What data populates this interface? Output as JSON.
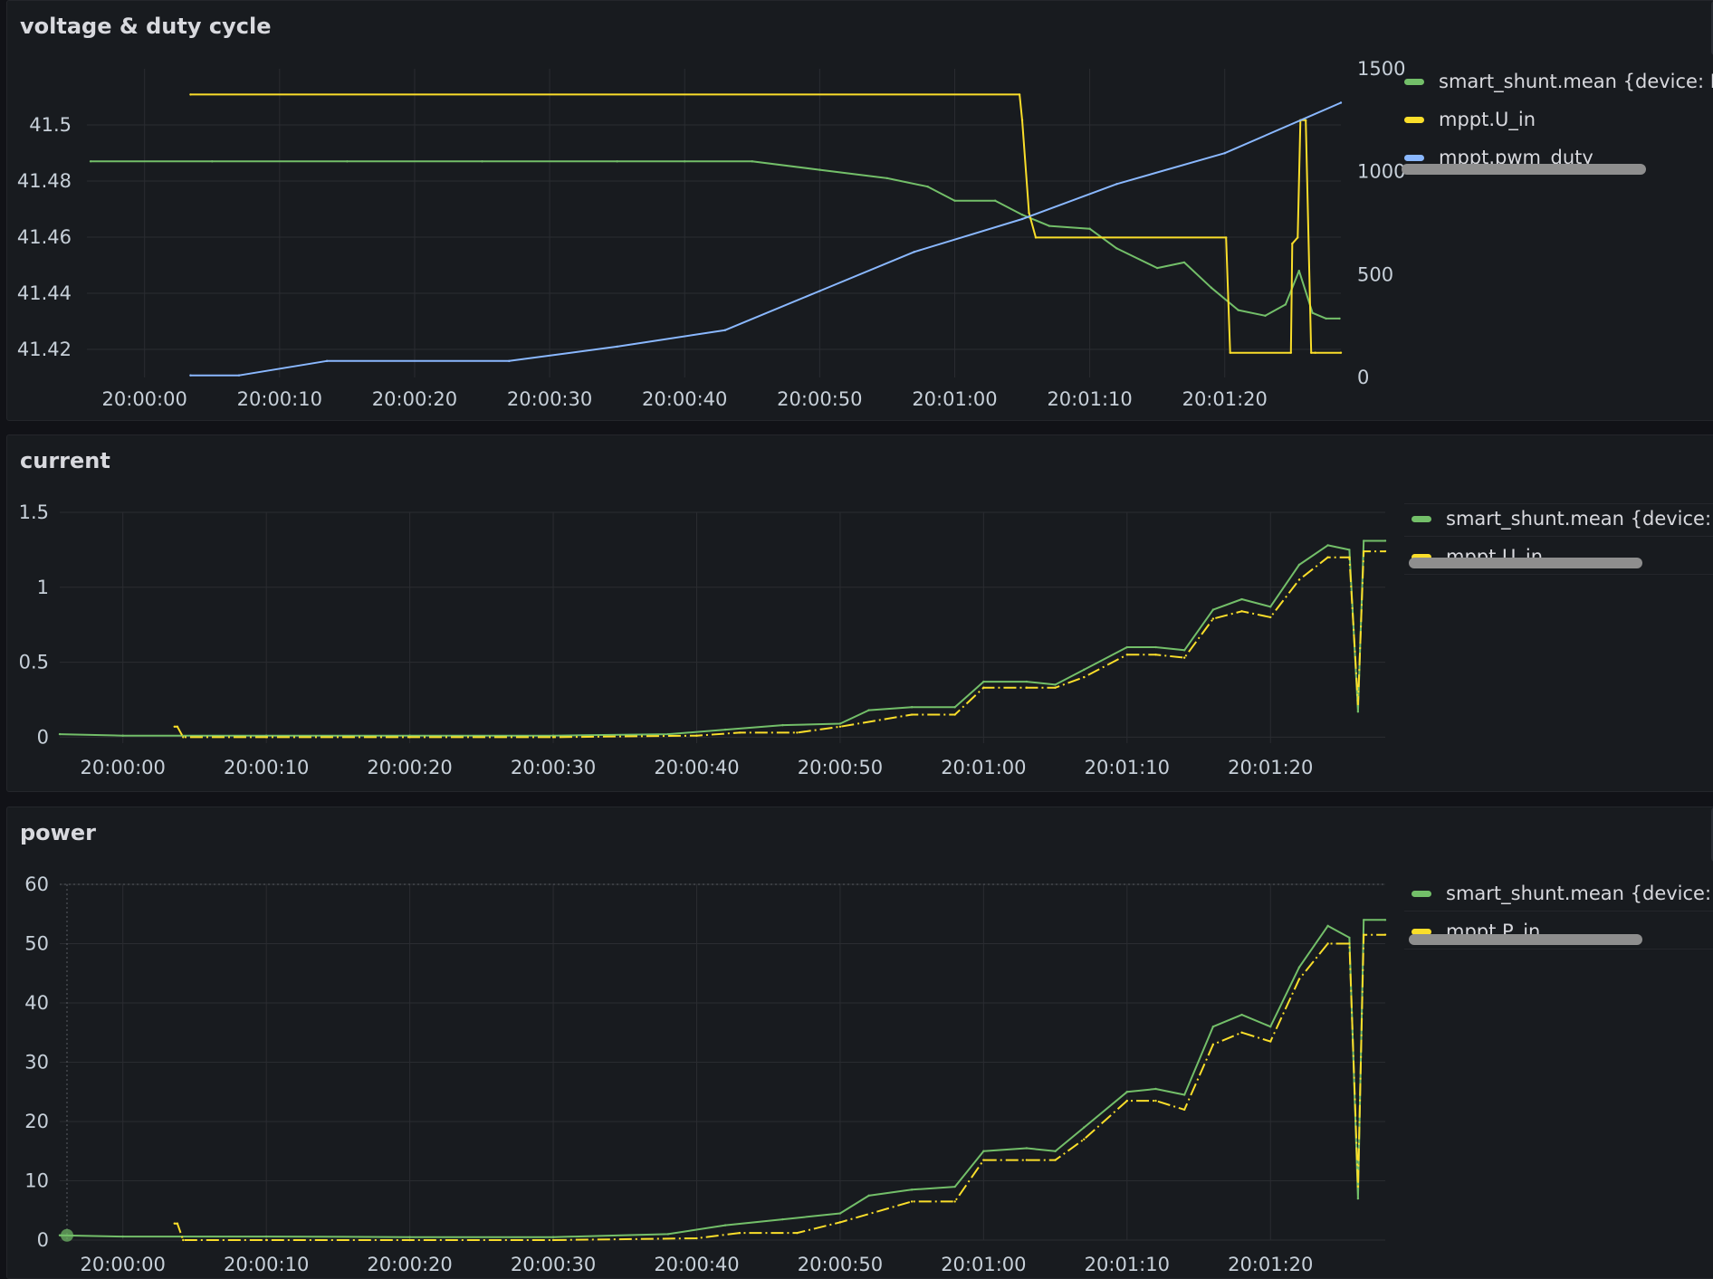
{
  "colors": {
    "green": "#73bf69",
    "yellow": "#fade2a",
    "blue": "#8ab8ff",
    "grid": "#2a2c31"
  },
  "panels": [
    {
      "title": "voltage & duty cycle",
      "legend": [
        {
          "label": "smart_shunt.mean {device: E",
          "color": "#73bf69"
        },
        {
          "label": "mppt.U_in",
          "color": "#fade2a"
        },
        {
          "label": "mppt.pwm_duty",
          "color": "#8ab8ff"
        }
      ],
      "chart_data": {
        "type": "line",
        "x_ticks": [
          "20:00:00",
          "20:00:10",
          "20:00:20",
          "20:00:30",
          "20:00:40",
          "20:00:50",
          "20:01:00",
          "20:01:10",
          "20:01:20"
        ],
        "x_range": [
          -3.6,
          88.6
        ],
        "y_left_ticks": [
          "41.42",
          "41.44",
          "41.46",
          "41.48",
          "41.5"
        ],
        "y_left_range": [
          41.41,
          41.52
        ],
        "y_right_ticks": [
          "0",
          "500",
          "1000",
          "1500"
        ],
        "y_right_range": [
          0,
          1500
        ],
        "series": [
          {
            "name": "smart_shunt.mean {device: E",
            "axis": "left",
            "color": "#73bf69",
            "x": [
              -4,
              5,
              15,
              25,
              35,
              40,
              45,
              50,
              55,
              58,
              60,
              63,
              65,
              67,
              70,
              72,
              75,
              77,
              79,
              81,
              83,
              84.5,
              85.5,
              86.5,
              87.5,
              88.5
            ],
            "y": [
              41.487,
              41.487,
              41.487,
              41.487,
              41.487,
              41.487,
              41.487,
              41.484,
              41.481,
              41.478,
              41.473,
              41.473,
              41.468,
              41.464,
              41.463,
              41.456,
              41.449,
              41.451,
              41.442,
              41.434,
              41.432,
              41.436,
              41.448,
              41.433,
              41.431,
              41.431
            ]
          },
          {
            "name": "mppt.U_in",
            "axis": "right",
            "color": "#fade2a",
            "x": [
              3.4,
              64.8,
              65,
              65.5,
              66,
              80.1,
              80.4,
              84.9,
              85,
              85.4,
              85.6,
              86,
              86.4,
              86.7,
              88.6
            ],
            "y": [
              1375,
              1375,
              1250,
              800,
              680,
              680,
              120,
              120,
              650,
              680,
              1250,
              1250,
              120,
              120,
              120
            ]
          },
          {
            "name": "mppt.pwm_duty",
            "axis": "right",
            "color": "#8ab8ff",
            "x": [
              3.4,
              7,
              13.5,
              27,
              35,
              43,
              50,
              57,
              65,
              72,
              80,
              88.6
            ],
            "y": [
              10,
              10,
              80,
              80,
              150,
              230,
              420,
              610,
              770,
              940,
              1090,
              1335
            ]
          }
        ]
      }
    },
    {
      "title": "current",
      "legend": [
        {
          "label": "smart_shunt.mean {device: E",
          "color": "#73bf69"
        },
        {
          "label": "mppt.U_in",
          "color": "#fade2a"
        }
      ],
      "chart_data": {
        "type": "line",
        "x_ticks": [
          "20:00:00",
          "20:00:10",
          "20:00:20",
          "20:00:30",
          "20:00:40",
          "20:00:50",
          "20:01:00",
          "20:01:10",
          "20:01:20"
        ],
        "x_range": [
          -4.4,
          88
        ],
        "y_ticks": [
          "0",
          "0.5",
          "1",
          "1.5"
        ],
        "y_range": [
          -0.04,
          1.5
        ],
        "series": [
          {
            "name": "smart_shunt.mean {device: E",
            "color": "#73bf69",
            "x": [
              -4.4,
              0,
              10,
              20,
              30,
              38,
              42,
              46,
              50,
              52,
              55,
              58,
              60,
              63,
              65,
              67,
              70,
              72,
              74,
              76,
              78,
              80,
              82,
              84,
              85.5,
              86.1,
              86.5,
              88
            ],
            "y": [
              0.02,
              0.01,
              0.01,
              0.01,
              0.01,
              0.02,
              0.05,
              0.08,
              0.09,
              0.18,
              0.2,
              0.2,
              0.37,
              0.37,
              0.35,
              0.45,
              0.6,
              0.6,
              0.58,
              0.85,
              0.92,
              0.87,
              1.15,
              1.28,
              1.25,
              0.17,
              1.31,
              1.31
            ]
          },
          {
            "name": "mppt.U_in",
            "color": "#fade2a",
            "x": [
              3.6,
              3.8,
              4.2,
              10,
              20,
              30,
              40,
              43,
              47,
              50,
              55,
              58,
              60,
              63,
              65,
              67,
              70,
              72,
              74,
              76,
              78,
              80,
              82,
              84,
              85.5,
              86.1,
              86.5,
              88
            ],
            "y": [
              0.07,
              0.07,
              0.0,
              0.0,
              0.0,
              0.0,
              0.01,
              0.03,
              0.03,
              0.07,
              0.15,
              0.15,
              0.33,
              0.33,
              0.33,
              0.4,
              0.55,
              0.55,
              0.53,
              0.79,
              0.84,
              0.8,
              1.05,
              1.2,
              1.2,
              0.22,
              1.24,
              1.24
            ]
          }
        ]
      }
    },
    {
      "title": "power",
      "legend": [
        {
          "label": "smart_shunt.mean {device: E",
          "color": "#73bf69"
        },
        {
          "label": "mppt.P_in",
          "color": "#fade2a"
        }
      ],
      "chart_data": {
        "type": "line",
        "x_ticks": [
          "20:00:00",
          "20:00:10",
          "20:00:20",
          "20:00:30",
          "20:00:40",
          "20:00:50",
          "20:01:00",
          "20:01:10",
          "20:01:20"
        ],
        "x_range": [
          -4.4,
          88
        ],
        "y_ticks": [
          "0",
          "10",
          "20",
          "30",
          "40",
          "50",
          "60"
        ],
        "y_range": [
          0,
          60
        ],
        "series": [
          {
            "name": "smart_shunt.mean {device: E",
            "color": "#73bf69",
            "x": [
              -4.4,
              0,
              10,
              20,
              30,
              38,
              42,
              46,
              50,
              52,
              55,
              58,
              60,
              63,
              65,
              67,
              70,
              72,
              74,
              76,
              78,
              80,
              82,
              84,
              85.5,
              86.1,
              86.5,
              88
            ],
            "y": [
              0.8,
              0.6,
              0.6,
              0.5,
              0.5,
              1.0,
              2.5,
              3.5,
              4.5,
              7.5,
              8.5,
              9,
              15,
              15.5,
              15,
              19,
              25,
              25.5,
              24.5,
              36,
              38,
              36,
              46,
              53,
              51,
              7,
              54,
              54
            ]
          },
          {
            "name": "mppt.P_in",
            "color": "#fade2a",
            "x": [
              3.6,
              3.8,
              4.2,
              10,
              20,
              30,
              40,
              43,
              47,
              50,
              55,
              58,
              60,
              63,
              65,
              67,
              70,
              72,
              74,
              76,
              78,
              80,
              82,
              84,
              85.5,
              86.1,
              86.5,
              88
            ],
            "y": [
              2.8,
              2.8,
              0.0,
              0.0,
              0.0,
              0.0,
              0.3,
              1.2,
              1.2,
              3,
              6.5,
              6.5,
              13.5,
              13.5,
              13.5,
              17,
              23.5,
              23.5,
              22,
              33,
              35,
              33.5,
              44,
              50,
              50,
              9,
              51.5,
              51.5
            ]
          }
        ]
      }
    }
  ]
}
